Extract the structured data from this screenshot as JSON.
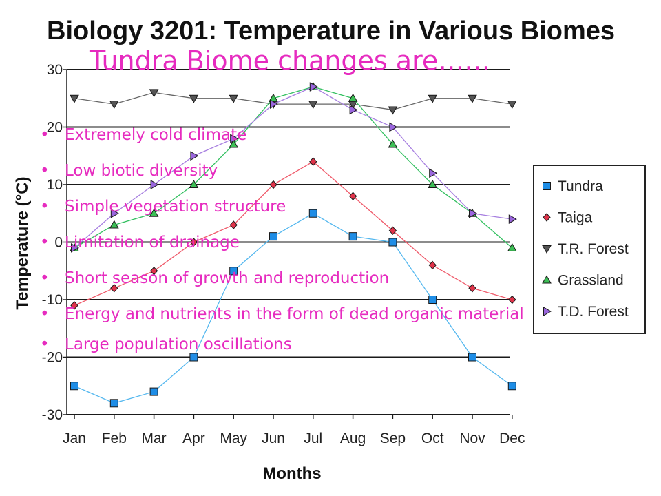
{
  "slide": {
    "title": "Tundra Biome changes are……",
    "bullet_glyph": "•",
    "bullets": [
      "Extremely cold climate",
      "Low biotic diversity",
      "Simple vegetation structure",
      "Limitation of drainage",
      "Short season of growth and reproduction",
      "Energy and nutrients in the form of dead organic material",
      "Large population oscillations"
    ]
  },
  "chart_data": {
    "type": "line",
    "title": "Biology 3201: Temperature in Various Biomes",
    "xlabel": "Months",
    "ylabel": "Temperature (°C)",
    "categories": [
      "Jan",
      "Feb",
      "Mar",
      "Apr",
      "May",
      "Jun",
      "Jul",
      "Aug",
      "Sep",
      "Oct",
      "Nov",
      "Dec"
    ],
    "ylim": [
      -30,
      30
    ],
    "yticks": [
      30,
      20,
      10,
      0,
      -10,
      -20,
      -30
    ],
    "grid": "horizontal",
    "legend_position": "right",
    "series": [
      {
        "name": "Tundra",
        "marker": "square",
        "color": "#1e8de6",
        "line_color": "#55b8ef",
        "values": [
          -25,
          -28,
          -26,
          -20,
          -5,
          1,
          5,
          1,
          0,
          -10,
          -20,
          -25
        ]
      },
      {
        "name": "Taiga",
        "marker": "diamond",
        "color": "#e0334a",
        "line_color": "#ef5a6a",
        "values": [
          -11,
          -8,
          -5,
          0,
          3,
          10,
          14,
          8,
          2,
          -4,
          -8,
          -10
        ]
      },
      {
        "name": "T.R. Forest",
        "marker": "triangle-down",
        "color": "#555555",
        "line_color": "#666666",
        "values": [
          25,
          24,
          26,
          25,
          25,
          24,
          24,
          24,
          23,
          25,
          25,
          24
        ]
      },
      {
        "name": "Grassland",
        "marker": "triangle-up",
        "color": "#3cbf55",
        "line_color": "#33c060",
        "values": [
          -1,
          3,
          5,
          10,
          17,
          25,
          27,
          25,
          17,
          10,
          5,
          -1
        ]
      },
      {
        "name": "T.D. Forest",
        "marker": "triangle-right",
        "color": "#9a66dd",
        "line_color": "#a77fe0",
        "values": [
          -1,
          5,
          10,
          15,
          18,
          24,
          27,
          23,
          20,
          12,
          5,
          4
        ]
      }
    ]
  }
}
